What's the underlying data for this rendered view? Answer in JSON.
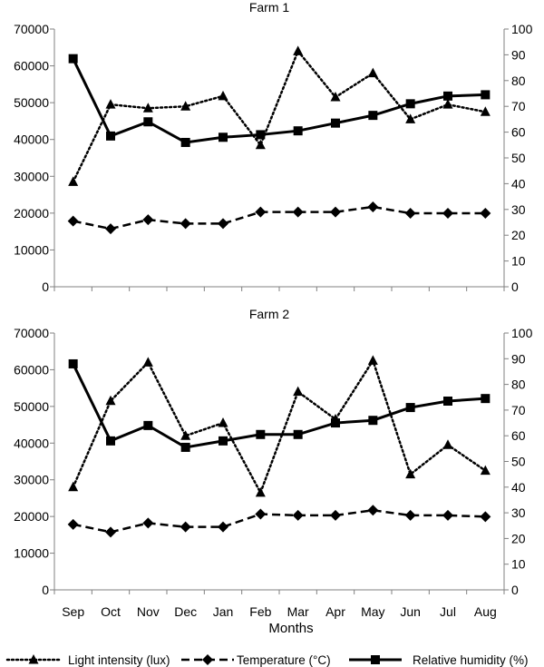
{
  "chart_data": [
    {
      "type": "line",
      "title": "Farm 1",
      "categories": [
        "Sep",
        "Oct",
        "Nov",
        "Dec",
        "Jan",
        "Feb",
        "Mar",
        "Apr",
        "May",
        "Jun",
        "Jul",
        "Aug"
      ],
      "xlabel": "",
      "ylim": [
        0,
        70000
      ],
      "yticks": [
        "0",
        "10000",
        "20000",
        "30000",
        "40000",
        "50000",
        "60000",
        "70000"
      ],
      "y2lim": [
        0,
        100
      ],
      "y2ticks": [
        "0",
        "10",
        "20",
        "30",
        "40",
        "50",
        "60",
        "70",
        "80",
        "90",
        "100"
      ],
      "grid": false,
      "series": [
        {
          "name": "Light intensity (lux)",
          "axis": "left",
          "style": "dotted",
          "marker": "triangle",
          "values": [
            28500,
            49500,
            48500,
            49000,
            51800,
            38500,
            64000,
            51500,
            58000,
            45500,
            49500,
            47500
          ]
        },
        {
          "name": "Temperature (°C)",
          "axis": "right",
          "style": "dashed",
          "marker": "diamond",
          "values": [
            25.5,
            22.5,
            26,
            24.5,
            24.5,
            29,
            29,
            29,
            31,
            28.5,
            28.5,
            28.5
          ]
        },
        {
          "name": "Relative humidity (%)",
          "axis": "right",
          "style": "solid",
          "marker": "square",
          "values": [
            88.5,
            58.5,
            64,
            56,
            58,
            59,
            60.5,
            63.5,
            66.5,
            71,
            74,
            74.5
          ]
        }
      ]
    },
    {
      "type": "line",
      "title": "Farm 2",
      "categories": [
        "Sep",
        "Oct",
        "Nov",
        "Dec",
        "Jan",
        "Feb",
        "Mar",
        "Apr",
        "May",
        "Jun",
        "Jul",
        "Aug"
      ],
      "xlabel": "Months",
      "ylim": [
        0,
        70000
      ],
      "yticks": [
        "0",
        "10000",
        "20000",
        "30000",
        "40000",
        "50000",
        "60000",
        "70000"
      ],
      "y2lim": [
        0,
        100
      ],
      "y2ticks": [
        "0",
        "10",
        "20",
        "30",
        "40",
        "50",
        "60",
        "70",
        "80",
        "90",
        "100"
      ],
      "grid": false,
      "series": [
        {
          "name": "Light intensity (lux)",
          "axis": "left",
          "style": "dotted",
          "marker": "triangle",
          "values": [
            28000,
            51500,
            62000,
            42000,
            45500,
            26500,
            54000,
            46500,
            62500,
            31500,
            39500,
            32500
          ]
        },
        {
          "name": "Temperature (°C)",
          "axis": "right",
          "style": "dashed",
          "marker": "diamond",
          "values": [
            25.5,
            22.5,
            26,
            24.5,
            24.5,
            29.5,
            29,
            29,
            31,
            29,
            29,
            28.5
          ]
        },
        {
          "name": "Relative humidity (%)",
          "axis": "right",
          "style": "solid",
          "marker": "square",
          "values": [
            88,
            58,
            64,
            55.5,
            58,
            60.5,
            60.5,
            65,
            66,
            71,
            73.5,
            74.5
          ]
        }
      ]
    }
  ],
  "legend": {
    "placement": "bottom",
    "items": [
      {
        "label": "Light intensity  (lux)",
        "style": "dotted",
        "marker": "triangle"
      },
      {
        "label": "Temperature (°C)",
        "style": "dashed",
        "marker": "diamond"
      },
      {
        "label": "Relative humidity  (%)",
        "style": "solid",
        "marker": "square"
      }
    ]
  }
}
